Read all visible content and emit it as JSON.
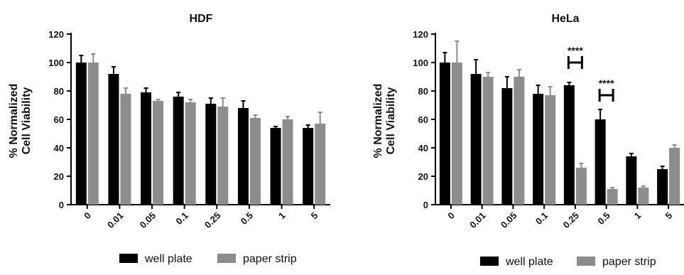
{
  "chart_data": [
    {
      "type": "bar",
      "title": "HDF",
      "ylabel_lines": [
        "% Normalized",
        "Cell Viability"
      ],
      "xlabel": "",
      "categories": [
        "0",
        "0.01",
        "0.05",
        "0.1",
        "0.25",
        "0.5",
        "1",
        "5"
      ],
      "yticks": [
        "0",
        "20",
        "40",
        "60",
        "80",
        "100",
        "120"
      ],
      "ylim": [
        0,
        120
      ],
      "series": [
        {
          "name": "well plate",
          "color": "#000000",
          "values": [
            100,
            92,
            79,
            76,
            71,
            68,
            54,
            54
          ],
          "errors": [
            5,
            5,
            3,
            3,
            4,
            5,
            1,
            2
          ]
        },
        {
          "name": "paper strip",
          "color": "#8c8c8c",
          "values": [
            100,
            78,
            73,
            72,
            69,
            61,
            60,
            57
          ],
          "errors": [
            6,
            4,
            1,
            2,
            6,
            2,
            2,
            8
          ]
        }
      ],
      "annotations": [],
      "legend": {
        "position": "bottom",
        "labels": [
          "well plate",
          "paper strip"
        ]
      }
    },
    {
      "type": "bar",
      "title": "HeLa",
      "ylabel_lines": [
        "% Normalized",
        "Cell Viability"
      ],
      "xlabel": "",
      "categories": [
        "0",
        "0.01",
        "0.05",
        "0.1",
        "0.25",
        "0.5",
        "1",
        "5"
      ],
      "yticks": [
        "0",
        "20",
        "40",
        "60",
        "80",
        "100",
        "120"
      ],
      "ylim": [
        0,
        120
      ],
      "series": [
        {
          "name": "well plate",
          "color": "#000000",
          "values": [
            100,
            92,
            82,
            78,
            84,
            60,
            34,
            25
          ],
          "errors": [
            7,
            10,
            8,
            6,
            2,
            7,
            2,
            2
          ]
        },
        {
          "name": "paper strip",
          "color": "#8c8c8c",
          "values": [
            100,
            90,
            90,
            77,
            26,
            11,
            12,
            40
          ],
          "errors": [
            15,
            3,
            5,
            6,
            3,
            1,
            1,
            2
          ]
        }
      ],
      "annotations": [
        {
          "category": "0.25",
          "label": "****",
          "y": 100
        },
        {
          "category": "0.5",
          "label": "****",
          "y": 77
        }
      ],
      "legend": {
        "position": "bottom",
        "labels": [
          "well plate",
          "paper strip"
        ]
      }
    }
  ]
}
